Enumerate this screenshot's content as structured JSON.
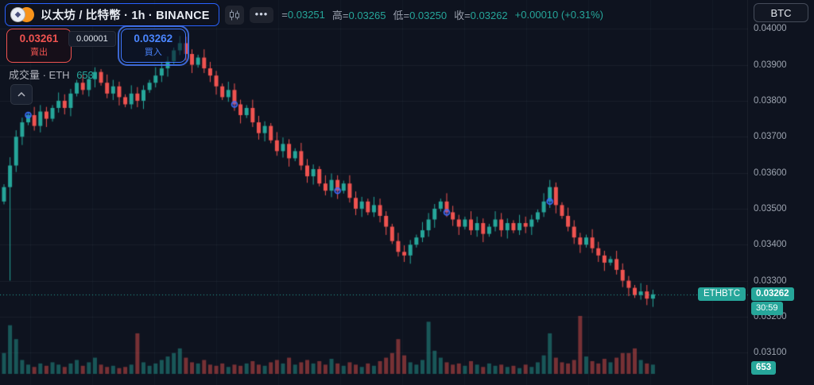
{
  "header": {
    "symbol_title": "以太坊 / 比特幣 · 1h · BINANCE",
    "menu_dots": "•••",
    "ohlc": {
      "open_label": "=",
      "open": "0.03251",
      "high_label": "高=",
      "high": "0.03265",
      "low_label": "低=",
      "low": "0.03250",
      "close_label": "收=",
      "close": "0.03262",
      "change": "+0.00010 (+0.31%)"
    },
    "currency_button": "BTC"
  },
  "trade_panel": {
    "sell_price": "0.03261",
    "sell_label": "賣出",
    "spread": "0.00001",
    "buy_price": "0.03262",
    "buy_label": "買入"
  },
  "volume_legend": {
    "label": "成交量 · ETH",
    "value": "653"
  },
  "price_axis": {
    "labels": [
      "0.04000",
      "0.03900",
      "0.03800",
      "0.03700",
      "0.03600",
      "0.03500",
      "0.03400",
      "0.03300",
      "0.03200",
      "0.03100"
    ]
  },
  "price_badge": {
    "symbol": "ETHBTC",
    "price": "0.03262",
    "countdown": "30:59"
  },
  "volume_badge": "653",
  "colors": {
    "up": "#26a69a",
    "down": "#ef5350",
    "blue": "#2962ff",
    "sell_red": "#f23645",
    "badge_green": "#26a69a"
  },
  "chart_data": {
    "type": "candlestick+volume",
    "symbol": "ETHBTC",
    "exchange": "BINANCE",
    "interval": "1h",
    "title": "以太坊 / 比特幣 · 1h · BINANCE",
    "ylim": [
      0.0301,
      0.0408
    ],
    "grid": true,
    "legend_position": "top-left",
    "last_price": 0.03262,
    "first_open": 0.0352,
    "closes": [
      0.0356,
      0.0362,
      0.037,
      0.0374,
      0.0376,
      0.0373,
      0.0377,
      0.0375,
      0.0378,
      0.038,
      0.0378,
      0.0382,
      0.0385,
      0.0383,
      0.0386,
      0.0388,
      0.0385,
      0.0382,
      0.0384,
      0.0381,
      0.0379,
      0.0382,
      0.038,
      0.0383,
      0.0385,
      0.0387,
      0.0389,
      0.0391,
      0.0394,
      0.0396,
      0.0393,
      0.039,
      0.0392,
      0.0389,
      0.0387,
      0.0384,
      0.0381,
      0.0383,
      0.0379,
      0.0376,
      0.0378,
      0.0374,
      0.0371,
      0.0373,
      0.0369,
      0.0366,
      0.0368,
      0.0364,
      0.0366,
      0.0362,
      0.0359,
      0.0361,
      0.0357,
      0.0355,
      0.0358,
      0.0355,
      0.0357,
      0.0353,
      0.035,
      0.0352,
      0.0349,
      0.0351,
      0.0348,
      0.0345,
      0.0341,
      0.0338,
      0.0337,
      0.034,
      0.0342,
      0.0344,
      0.0347,
      0.035,
      0.0352,
      0.0349,
      0.0347,
      0.0345,
      0.0347,
      0.0344,
      0.0346,
      0.0343,
      0.0345,
      0.0347,
      0.0344,
      0.0346,
      0.0344,
      0.0346,
      0.0345,
      0.0347,
      0.0349,
      0.0352,
      0.0356,
      0.0351,
      0.0348,
      0.0345,
      0.0342,
      0.034,
      0.0342,
      0.0339,
      0.0337,
      0.0335,
      0.0336,
      0.0333,
      0.033,
      0.0328,
      0.0326,
      0.0327,
      0.0325,
      0.03262
    ],
    "volumes": [
      18,
      42,
      30,
      12,
      8,
      6,
      9,
      7,
      10,
      8,
      6,
      9,
      12,
      7,
      10,
      14,
      8,
      6,
      7,
      5,
      6,
      8,
      35,
      10,
      7,
      9,
      12,
      15,
      18,
      22,
      14,
      10,
      9,
      12,
      8,
      7,
      9,
      6,
      8,
      7,
      9,
      11,
      8,
      7,
      10,
      12,
      9,
      14,
      8,
      10,
      12,
      9,
      11,
      8,
      13,
      9,
      7,
      10,
      8,
      6,
      9,
      7,
      11,
      14,
      18,
      30,
      16,
      10,
      8,
      12,
      45,
      20,
      14,
      10,
      8,
      9,
      7,
      11,
      8,
      6,
      9,
      7,
      8,
      6,
      7,
      5,
      8,
      6,
      10,
      16,
      35,
      14,
      10,
      9,
      12,
      50,
      15,
      11,
      9,
      13,
      10,
      14,
      18,
      18,
      22,
      12,
      9,
      8
    ],
    "wick_overrides": {
      "1": {
        "low": 0.033
      },
      "29": {
        "high": 0.0398
      },
      "90": {
        "high": 0.0358
      }
    },
    "markers": [
      {
        "index": 4,
        "price": 0.0376
      },
      {
        "index": 38,
        "price": 0.0379
      },
      {
        "index": 55,
        "price": 0.0355
      },
      {
        "index": 73,
        "price": 0.0349
      },
      {
        "index": 90,
        "price": 0.0352
      }
    ]
  }
}
